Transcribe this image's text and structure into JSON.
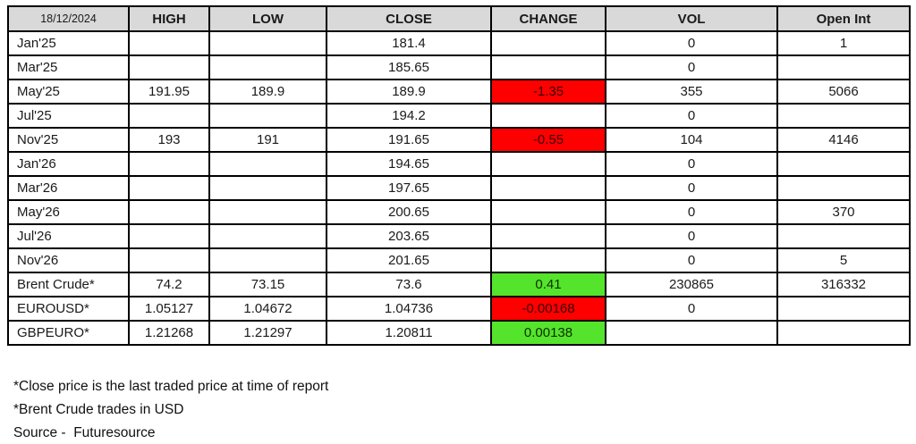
{
  "report": {
    "date": "18/12/2024",
    "columns": [
      "HIGH",
      "LOW",
      "CLOSE",
      "CHANGE",
      "VOL",
      "Open Int"
    ],
    "rows": [
      {
        "label": "Jan'25",
        "high": "",
        "low": "",
        "close": "181.4",
        "change": "",
        "change_state": "none",
        "vol": "0",
        "open_int": "1"
      },
      {
        "label": "Mar'25",
        "high": "",
        "low": "",
        "close": "185.65",
        "change": "",
        "change_state": "none",
        "vol": "0",
        "open_int": ""
      },
      {
        "label": "May'25",
        "high": "191.95",
        "low": "189.9",
        "close": "189.9",
        "change": "-1.35",
        "change_state": "down",
        "vol": "355",
        "open_int": "5066"
      },
      {
        "label": "Jul'25",
        "high": "",
        "low": "",
        "close": "194.2",
        "change": "",
        "change_state": "none",
        "vol": "0",
        "open_int": ""
      },
      {
        "label": "Nov'25",
        "high": "193",
        "low": "191",
        "close": "191.65",
        "change": "-0.55",
        "change_state": "down",
        "vol": "104",
        "open_int": "4146"
      },
      {
        "label": "Jan'26",
        "high": "",
        "low": "",
        "close": "194.65",
        "change": "",
        "change_state": "none",
        "vol": "0",
        "open_int": ""
      },
      {
        "label": "Mar'26",
        "high": "",
        "low": "",
        "close": "197.65",
        "change": "",
        "change_state": "none",
        "vol": "0",
        "open_int": ""
      },
      {
        "label": "May'26",
        "high": "",
        "low": "",
        "close": "200.65",
        "change": "",
        "change_state": "none",
        "vol": "0",
        "open_int": "370"
      },
      {
        "label": "Jul'26",
        "high": "",
        "low": "",
        "close": "203.65",
        "change": "",
        "change_state": "none",
        "vol": "0",
        "open_int": ""
      },
      {
        "label": "Nov'26",
        "high": "",
        "low": "",
        "close": "201.65",
        "change": "",
        "change_state": "none",
        "vol": "0",
        "open_int": "5"
      },
      {
        "label": "Brent Crude*",
        "high": "74.2",
        "low": "73.15",
        "close": "73.6",
        "change": "0.41",
        "change_state": "up",
        "vol": "230865",
        "open_int": "316332"
      },
      {
        "label": "EUROUSD*",
        "high": "1.05127",
        "low": "1.04672",
        "close": "1.04736",
        "change": "-0.00168",
        "change_state": "down",
        "vol": "0",
        "open_int": ""
      },
      {
        "label": "GBPEURO*",
        "high": "1.21268",
        "low": "1.21297",
        "close": "1.20811",
        "change": "0.00138",
        "change_state": "up",
        "vol": "",
        "open_int": ""
      }
    ],
    "footnotes": [
      "*Close price is the last traded price at time of report",
      "*Brent Crude trades in USD",
      "Source -  Futuresource"
    ],
    "colors": {
      "header_bg": "#d9d9d9",
      "up": "#54e42c",
      "down": "#fe0000",
      "up_text": "#0f2d00",
      "down_text": "#380000",
      "border": "#000000"
    }
  }
}
